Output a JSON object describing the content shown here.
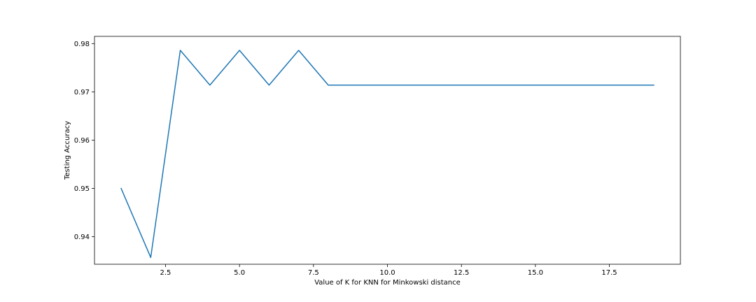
{
  "chart_data": {
    "type": "line",
    "title": "",
    "xlabel": "Value of K for KNN for Minkowski distance",
    "ylabel": "Testing Accuracy",
    "xlim": [
      0.1,
      19.9
    ],
    "ylim": [
      0.9343,
      0.9815
    ],
    "grid": false,
    "x_ticks": [
      2.5,
      5.0,
      7.5,
      10.0,
      12.5,
      15.0,
      17.5
    ],
    "x_tick_labels": [
      "2.5",
      "5.0",
      "7.5",
      "10.0",
      "12.5",
      "15.0",
      "17.5"
    ],
    "y_ticks": [
      0.94,
      0.95,
      0.96,
      0.97,
      0.98
    ],
    "y_tick_labels": [
      "0.94",
      "0.95",
      "0.96",
      "0.97",
      "0.98"
    ],
    "line_color": "#1f77b4",
    "series": [
      {
        "x": [
          1,
          2,
          3,
          4,
          5,
          6,
          7,
          8,
          9,
          10,
          11,
          12,
          13,
          14,
          15,
          16,
          17,
          18,
          19
        ],
        "values": [
          0.95,
          0.9357,
          0.9786,
          0.9714,
          0.9786,
          0.9714,
          0.9786,
          0.9714,
          0.9714,
          0.9714,
          0.9714,
          0.9714,
          0.9714,
          0.9714,
          0.9714,
          0.9714,
          0.9714,
          0.9714,
          0.9714
        ]
      }
    ]
  }
}
